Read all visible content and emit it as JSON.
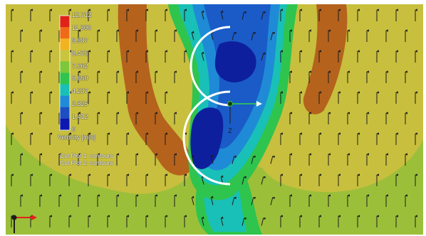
{
  "legend": {
    "values": [
      "12.712",
      "11.300",
      "9.887",
      "8.475",
      "7.062",
      "5.650",
      "4.237",
      "2.825",
      "1.412",
      "0"
    ],
    "title": "Velocity [m/s]",
    "colors": [
      "#e02318",
      "#ef6a18",
      "#f2b321",
      "#c9c53c",
      "#7cc73a",
      "#2fc44e",
      "#19c0b7",
      "#1f8bd6",
      "#1c4fc2",
      "#0c18b0"
    ]
  },
  "cut_plots": [
    "Cut Plot 1: contours",
    "Cut Plot 2: contours"
  ],
  "axis_triad": {
    "z_label": "Z"
  },
  "colors": {
    "background_field": "#c8bf3e",
    "low_velocity_field": "#9cbf3a",
    "wake_blue": "#1a5bc7",
    "wake_dark": "#0e1f9e",
    "vortex_brown": "#b5621d",
    "rotor_blade": "#ffffff",
    "arrow": "#1c1c1c"
  },
  "icons": [
    "rotor-blade-icon",
    "velocity-arrow-icon",
    "axis-triad-icon",
    "origin-marker-icon"
  ]
}
